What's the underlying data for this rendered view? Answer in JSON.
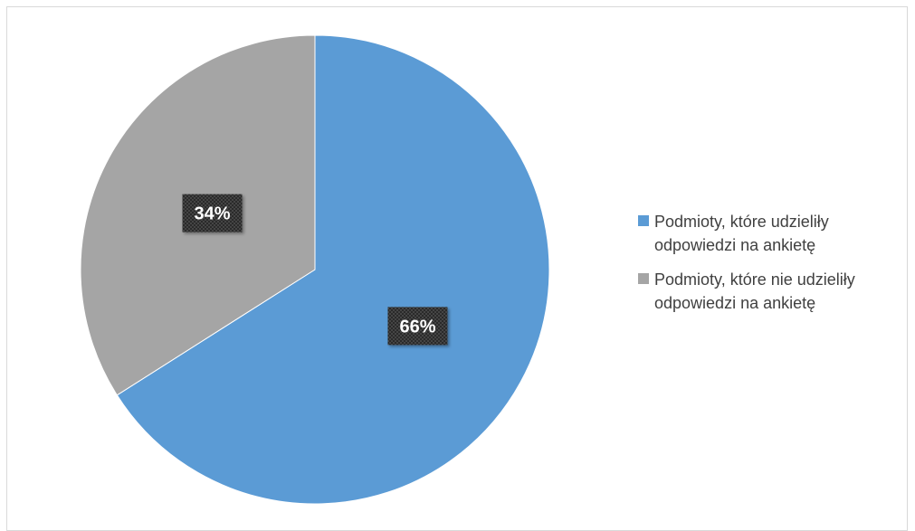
{
  "chart_data": {
    "type": "pie",
    "title": "",
    "categories": [
      "Podmioty, które udzieliły odpowiedzi na ankietę",
      "Podmioty, które nie udzieliły odpowiedzi na ankietę"
    ],
    "values": [
      66,
      34
    ],
    "data_labels": [
      "66%",
      "34%"
    ],
    "colors": [
      "#5b9bd5",
      "#a5a5a5"
    ],
    "legend": {
      "placement": "right",
      "entries": [
        "Podmioty, które udzieliły odpowiedzi na ankietę",
        "Podmioty, które nie udzieliły odpowiedzi na ankietę"
      ]
    }
  }
}
